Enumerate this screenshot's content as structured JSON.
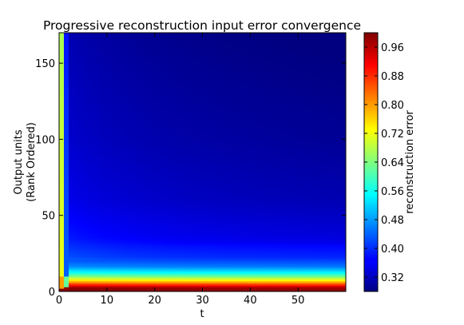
{
  "chart_data": {
    "type": "heatmap",
    "title": "Progressive reconstruction input error convergence",
    "xlabel": "t",
    "ylabel_lines": [
      "Output units",
      "(Rank Ordered)"
    ],
    "colorbar_label": "reconstruction error",
    "colormap": "jet",
    "xlim": [
      0,
      60
    ],
    "ylim": [
      0,
      170
    ],
    "clim": [
      0.28,
      1.0
    ],
    "x_ticks": [
      0,
      10,
      20,
      30,
      40,
      50
    ],
    "y_ticks": [
      0,
      50,
      100,
      150
    ],
    "colorbar_ticks": [
      0.32,
      0.4,
      0.48,
      0.56,
      0.64,
      0.72,
      0.8,
      0.88,
      0.96
    ],
    "x_tick_labels": [
      "0",
      "10",
      "20",
      "30",
      "40",
      "50"
    ],
    "y_tick_labels": [
      "0",
      "50",
      "100",
      "150"
    ],
    "colorbar_tick_labels": [
      "0.32",
      "0.40",
      "0.48",
      "0.56",
      "0.64",
      "0.72",
      "0.80",
      "0.88",
      "0.96"
    ],
    "profile": {
      "t0_column_values": [
        1.0,
        0.9,
        0.75,
        0.72,
        0.7
      ],
      "t1_column_values": [
        1.0,
        0.85,
        0.6,
        0.5,
        0.42
      ],
      "late_row_band_values": [
        {
          "unit": 0,
          "value": 0.99
        },
        {
          "unit": 2,
          "value": 0.98
        },
        {
          "unit": 4,
          "value": 0.88
        },
        {
          "unit": 6,
          "value": 0.78
        },
        {
          "unit": 9,
          "value": 0.65
        },
        {
          "unit": 12,
          "value": 0.55
        },
        {
          "unit": 16,
          "value": 0.46
        },
        {
          "unit": 22,
          "value": 0.4
        },
        {
          "unit": 35,
          "value": 0.36
        },
        {
          "unit": 60,
          "value": 0.33
        },
        {
          "unit": 100,
          "value": 0.31
        },
        {
          "unit": 170,
          "value": 0.29
        }
      ]
    }
  }
}
